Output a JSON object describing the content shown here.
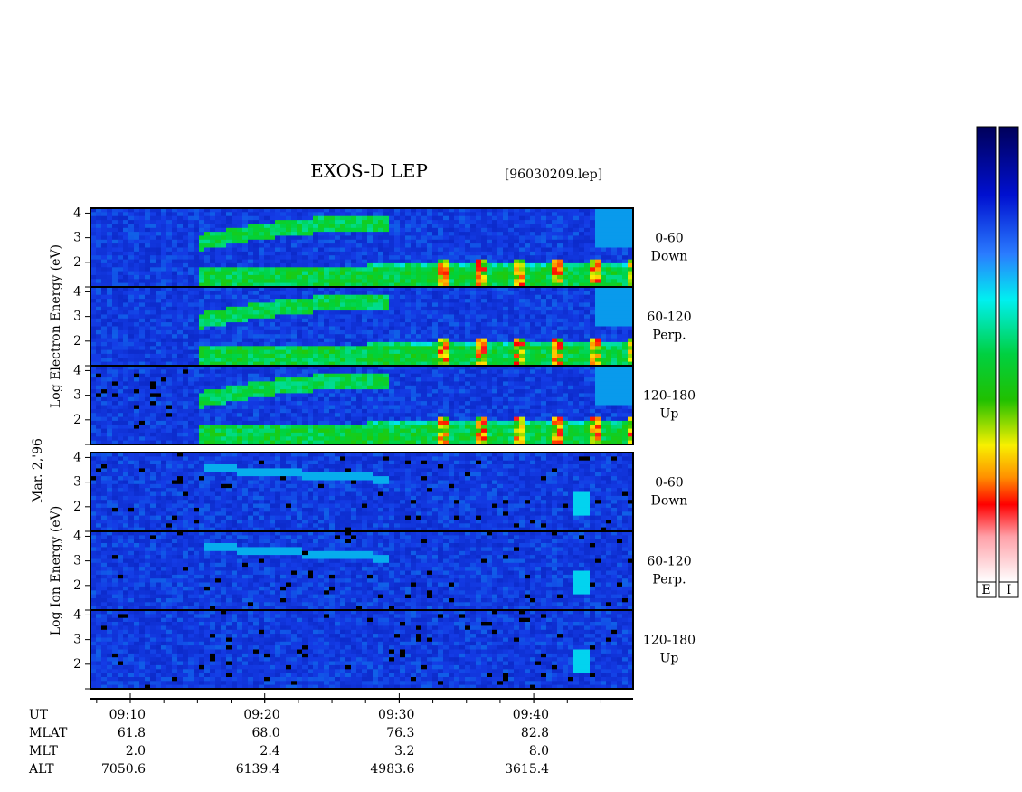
{
  "title": "EXOS-D LEP",
  "file": "[96030209.lep]",
  "side_label": "Mar. 2,'96",
  "groups": [
    {
      "axis_label": "Log Electron Energy (eV)",
      "panels": [
        {
          "yticks": [
            4,
            3,
            2
          ],
          "label": [
            "0-60",
            "Down"
          ]
        },
        {
          "yticks": [
            4,
            3,
            2
          ],
          "label": [
            "60-120",
            "Perp."
          ]
        },
        {
          "yticks": [
            4,
            3,
            2
          ],
          "label": [
            "120-180",
            "Up"
          ]
        }
      ]
    },
    {
      "axis_label": "Log Ion Energy (eV)",
      "panels": [
        {
          "yticks": [
            4,
            3,
            2
          ],
          "label": [
            "0-60",
            "Down"
          ]
        },
        {
          "yticks": [
            4,
            3,
            2
          ],
          "label": [
            "60-120",
            "Perp."
          ]
        },
        {
          "yticks": [
            4,
            3,
            2
          ],
          "label": [
            "120-180",
            "Up"
          ]
        }
      ]
    }
  ],
  "time_ticks": [
    "09:10",
    "09:20",
    "09:30",
    "09:40"
  ],
  "rows": [
    {
      "name": "UT"
    },
    {
      "name": "MLAT",
      "values": [
        "61.8",
        "68.0",
        "76.3",
        "82.8"
      ]
    },
    {
      "name": "MLT",
      "values": [
        "2.0",
        "2.4",
        "3.2",
        "8.0"
      ]
    },
    {
      "name": "ALT",
      "values": [
        "7050.6",
        "6139.4",
        "4983.6",
        "3615.4"
      ]
    }
  ],
  "colorbars": [
    "E",
    "I"
  ]
}
